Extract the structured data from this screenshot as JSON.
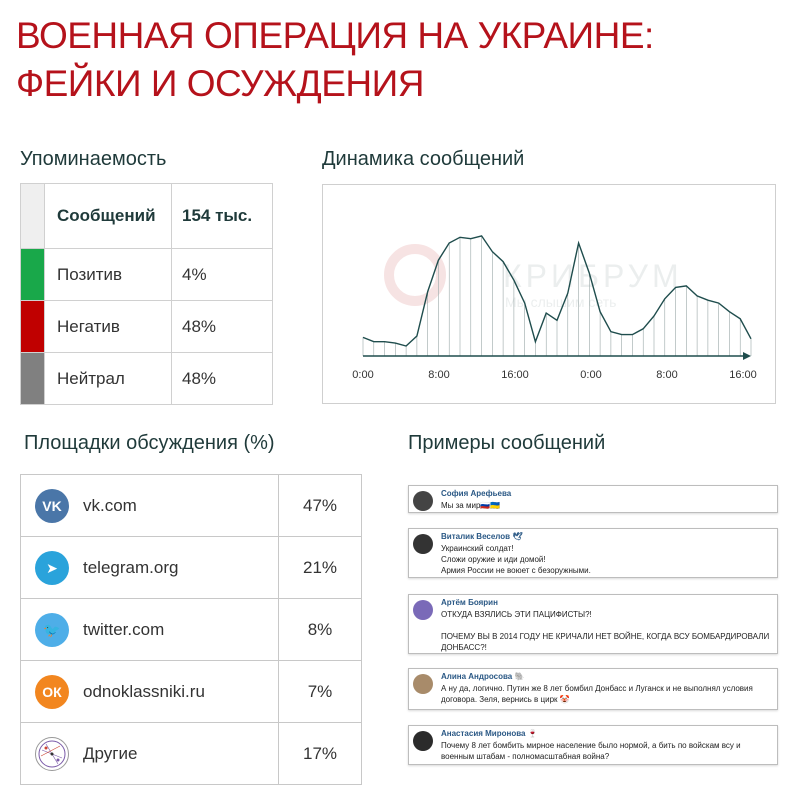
{
  "title": {
    "line1": "ВОЕННАЯ ОПЕРАЦИЯ НА УКРАИНЕ:",
    "line2": "ФЕЙКИ И ОСУЖДЕНИЯ"
  },
  "mentions": {
    "heading": "Упоминаемость",
    "header_label": "Сообщений",
    "header_value": "154 тыс.",
    "rows": [
      {
        "label": "Позитив",
        "value": "4%",
        "color": "#19a84a"
      },
      {
        "label": "Негатив",
        "value": "48%",
        "color": "#c00000"
      },
      {
        "label": "Нейтрал",
        "value": "48%",
        "color": "#808080"
      }
    ]
  },
  "dynamics": {
    "heading": "Динамика сообщений",
    "watermark_brand": "КРИБРУМ",
    "watermark_tagline": "Мы слышим сеть",
    "chart_data": {
      "type": "area",
      "x_ticks": [
        "0:00",
        "8:00",
        "16:00",
        "0:00",
        "8:00",
        "16:00"
      ],
      "values": [
        0.13,
        0.1,
        0.1,
        0.09,
        0.07,
        0.14,
        0.45,
        0.67,
        0.79,
        0.83,
        0.82,
        0.84,
        0.73,
        0.66,
        0.53,
        0.37,
        0.1,
        0.3,
        0.25,
        0.44,
        0.79,
        0.58,
        0.31,
        0.17,
        0.15,
        0.15,
        0.19,
        0.28,
        0.4,
        0.48,
        0.49,
        0.42,
        0.39,
        0.37,
        0.31,
        0.26,
        0.12
      ],
      "ylim": [
        0,
        1
      ],
      "grid": false
    }
  },
  "platforms": {
    "heading": "Площадки обсуждения (%)",
    "rows": [
      {
        "name": "vk.com",
        "pct": "47%",
        "icon": "vk-icon",
        "color": "#4a76a8",
        "glyph": "VK"
      },
      {
        "name": "telegram.org",
        "pct": "21%",
        "icon": "telegram-icon",
        "color": "#2aa3db",
        "glyph": "➤"
      },
      {
        "name": "twitter.com",
        "pct": "8%",
        "icon": "twitter-icon",
        "color": "#4eaee8",
        "glyph": "🐦"
      },
      {
        "name": "odnoklassniki.ru",
        "pct": "7%",
        "icon": "odnoklassniki-icon",
        "color": "#f2861f",
        "glyph": "ОК"
      },
      {
        "name": "Другие",
        "pct": "17%",
        "icon": "network-icon",
        "color": "#ffffff",
        "glyph": ""
      }
    ]
  },
  "examples": {
    "heading": "Примеры сообщений",
    "items": [
      {
        "user": "София Арефьева",
        "text": "Мы за мир🇷🇺🇺🇦",
        "avatar_color": "#444444"
      },
      {
        "user": "Виталик Веселов 🕊",
        "text": "Украинский солдат!\nСложи оружие и иди домой!\nАрмия России не воюет с безоружными.",
        "avatar_color": "#333333"
      },
      {
        "user": "Артём Боярин",
        "text": "ОТКУДА ВЗЯЛИСЬ ЭТИ ПАЦИФИСТЫ?!\n\nПОЧЕМУ ВЫ В 2014 ГОДУ НЕ КРИЧАЛИ НЕТ ВОЙНЕ, КОГДА ВСУ БОМБАРДИРОВАЛИ ДОНБАСС?!",
        "avatar_color": "#7a6ab8"
      },
      {
        "user": "Алина Андросова 🐘",
        "text": "А ну да, логично. Путин же 8 лет бомбил Донбасс и Луганск и не выполнял условия договора. Зеля, вернись в цирк 🤡",
        "avatar_color": "#a88b6a"
      },
      {
        "user": "Анастасия Миронова 🍷",
        "text": "Почему 8 лет бомбить мирное население было нормой, а бить по войскам всу и военным штабам - полномасштабная война?",
        "avatar_color": "#2b2b2b"
      }
    ]
  }
}
